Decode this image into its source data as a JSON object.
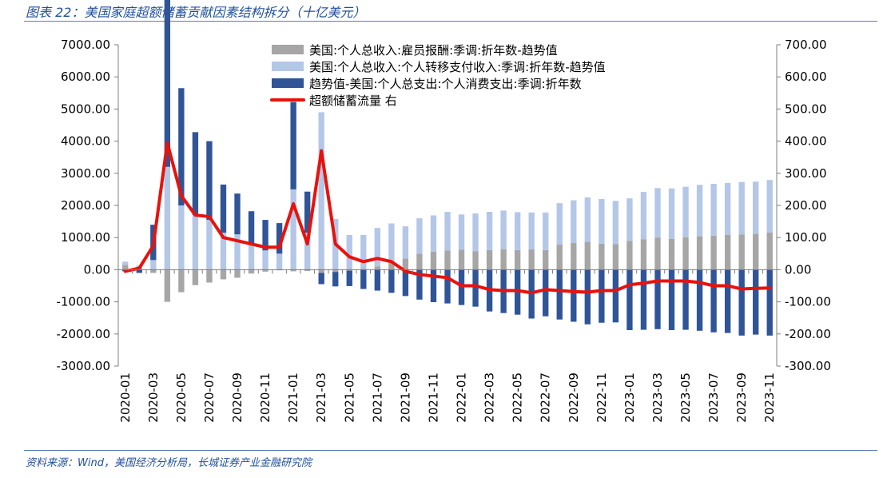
{
  "figure": {
    "title": "图表 22：美国家庭超额储蓄贡献因素结构拆分（十亿美元）",
    "source": "资料来源：Wind，美国经济分析局，长城证券产业金融研究院"
  },
  "chart_data": {
    "type": "bar",
    "categories": [
      "2020-01",
      "2020-02",
      "2020-03",
      "2020-04",
      "2020-05",
      "2020-06",
      "2020-07",
      "2020-08",
      "2020-09",
      "2020-10",
      "2020-11",
      "2020-12",
      "2021-01",
      "2021-02",
      "2021-03",
      "2021-04",
      "2021-05",
      "2021-06",
      "2021-07",
      "2021-08",
      "2021-09",
      "2021-10",
      "2021-11",
      "2021-12",
      "2022-01",
      "2022-02",
      "2022-03",
      "2022-04",
      "2022-05",
      "2022-06",
      "2022-07",
      "2022-08",
      "2022-09",
      "2022-10",
      "2022-11",
      "2022-12",
      "2023-01",
      "2023-02",
      "2023-03",
      "2023-04",
      "2023-05",
      "2023-06",
      "2023-07",
      "2023-08",
      "2023-09",
      "2023-10",
      "2023-11"
    ],
    "x_tick_labels": [
      "2020-01",
      "2020-03",
      "2020-05",
      "2020-07",
      "2020-09",
      "2020-11",
      "2021-01",
      "2021-03",
      "2021-05",
      "2021-07",
      "2021-09",
      "2021-11",
      "2022-01",
      "2022-03",
      "2022-05",
      "2022-07",
      "2022-09",
      "2022-11",
      "2023-01",
      "2023-03",
      "2023-05",
      "2023-07",
      "2023-09",
      "2023-11"
    ],
    "y_left_ticks": [
      "7000.00",
      "6000.00",
      "5000.00",
      "4000.00",
      "3000.00",
      "2000.00",
      "1000.00",
      "0.00",
      "-1000.00",
      "-2000.00",
      "-3000.00"
    ],
    "y_right_ticks": [
      "700.00",
      "600.00",
      "500.00",
      "400.00",
      "300.00",
      "200.00",
      "100.00",
      "0.00",
      "-100.00",
      "-200.00",
      "-300.00"
    ],
    "ylim_left": [
      -3000,
      7000
    ],
    "ylim_right": [
      -300,
      700
    ],
    "legend_position": "top-center",
    "grid": false,
    "series": [
      {
        "name": "美国:个人总收入:雇员报酬:季调:折年数-趋势值",
        "kind": "bar",
        "axis": "left",
        "color": "#a6a6a6",
        "values": [
          150,
          50,
          -100,
          -1000,
          -700,
          -480,
          -400,
          -300,
          -250,
          -120,
          -60,
          -20,
          -50,
          -40,
          -100,
          -70,
          -30,
          30,
          100,
          240,
          350,
          500,
          560,
          600,
          620,
          570,
          610,
          640,
          610,
          630,
          610,
          780,
          830,
          870,
          810,
          800,
          900,
          950,
          1000,
          960,
          1010,
          1040,
          1060,
          1080,
          1100,
          1120,
          1160
        ]
      },
      {
        "name": "美国:个人总收入:个人转移支付收入:季调:折年数-趋势值",
        "kind": "bar",
        "axis": "left",
        "color": "#b4c7e7",
        "values": [
          100,
          80,
          300,
          3200,
          2000,
          1700,
          1550,
          1150,
          1100,
          800,
          600,
          500,
          2500,
          1150,
          4900,
          1580,
          1080,
          1050,
          1200,
          1200,
          1000,
          1100,
          1130,
          1200,
          1100,
          1180,
          1190,
          1200,
          1180,
          1150,
          1170,
          1290,
          1330,
          1380,
          1390,
          1340,
          1320,
          1470,
          1540,
          1570,
          1570,
          1600,
          1610,
          1620,
          1630,
          1620,
          1630
        ]
      },
      {
        "name": "趋势值-美国:个人总支出:个人消费支出:季调:折年数",
        "kind": "bar",
        "axis": "left",
        "color": "#2f5597",
        "values": [
          -50,
          -100,
          1100,
          5850,
          3650,
          2580,
          2450,
          1500,
          1270,
          1020,
          950,
          950,
          2720,
          1280,
          -350,
          -450,
          -480,
          -600,
          -650,
          -720,
          -820,
          -930,
          -1010,
          -1050,
          -1100,
          -1150,
          -1300,
          -1350,
          -1400,
          -1520,
          -1450,
          -1550,
          -1620,
          -1700,
          -1650,
          -1640,
          -1880,
          -1870,
          -1850,
          -1880,
          -1870,
          -1900,
          -1950,
          -1970,
          -2050,
          -2020,
          -2050
        ]
      },
      {
        "name": "超额储蓄流量 右",
        "kind": "line",
        "axis": "right",
        "color": "#e8120c",
        "values": [
          -5,
          5,
          75,
          395,
          230,
          170,
          165,
          100,
          90,
          80,
          70,
          70,
          205,
          80,
          370,
          80,
          40,
          25,
          35,
          25,
          -5,
          -15,
          -20,
          -25,
          -50,
          -50,
          -62,
          -65,
          -65,
          -72,
          -62,
          -65,
          -68,
          -70,
          -65,
          -65,
          -47,
          -42,
          -35,
          -35,
          -35,
          -40,
          -50,
          -50,
          -60,
          -58,
          -57
        ]
      }
    ]
  }
}
